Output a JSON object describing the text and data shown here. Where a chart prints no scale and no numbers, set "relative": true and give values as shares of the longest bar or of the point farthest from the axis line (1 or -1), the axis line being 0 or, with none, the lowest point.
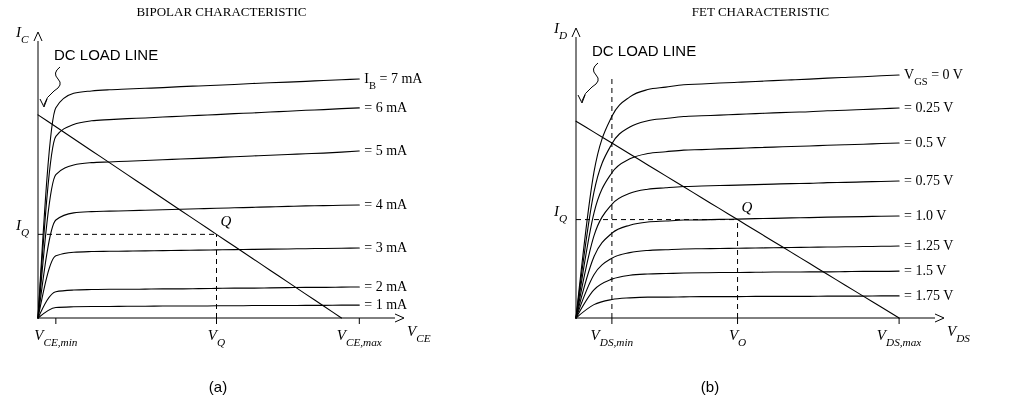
{
  "chart_data": [
    {
      "type": "line",
      "title": "BIPOLAR CHARACTERISTIC",
      "xlabel": "V$_{CE}$",
      "ylabel": "I$_{C}$",
      "relative": true,
      "categories": [
        null,
        "V$_{CE,min}$",
        null,
        null,
        null,
        null,
        null,
        null,
        null,
        null,
        "V$_{Q}$",
        null,
        null,
        null,
        null,
        null,
        null,
        null,
        "V$_{CE,max}$",
        null,
        null
      ],
      "series": [
        {
          "name": "I$_{B}$ = 7 mA",
          "color": "#000000",
          "values": [
            0,
            0.88,
            0.94,
            0.95,
            0.955,
            0.958,
            0.961,
            0.964,
            0.968,
            0.971,
            0.974,
            0.977,
            0.981,
            0.984,
            0.987,
            0.99,
            0.994,
            0.997,
            1.0,
            null,
            null
          ]
        },
        {
          "name": "= 6 mA",
          "color": "#000000",
          "values": [
            0,
            0.76,
            0.81,
            0.825,
            0.83,
            0.834,
            0.837,
            0.841,
            0.844,
            0.848,
            0.851,
            0.855,
            0.858,
            0.862,
            0.865,
            0.869,
            0.872,
            0.876,
            0.879,
            null,
            null
          ]
        },
        {
          "name": "= 5 mA",
          "color": "#000000",
          "values": [
            0,
            0.6,
            0.64,
            0.65,
            0.653,
            0.656,
            0.659,
            0.662,
            0.665,
            0.668,
            0.671,
            0.675,
            0.678,
            0.681,
            0.684,
            0.687,
            0.69,
            0.694,
            0.699,
            null,
            null
          ]
        },
        {
          "name": "= 4 mA",
          "color": "#000000",
          "values": [
            0,
            0.41,
            0.44,
            0.445,
            0.447,
            0.449,
            0.451,
            0.453,
            0.455,
            0.457,
            0.459,
            0.461,
            0.463,
            0.465,
            0.467,
            0.469,
            0.47,
            0.472,
            0.473,
            null,
            null
          ]
        },
        {
          "name": "= 3 mA",
          "color": "#000000",
          "values": [
            0,
            0.26,
            0.275,
            0.278,
            0.279,
            0.28,
            0.281,
            0.282,
            0.283,
            0.284,
            0.285,
            0.286,
            0.287,
            0.288,
            0.289,
            0.29,
            0.291,
            0.292,
            0.293,
            null,
            null
          ]
        },
        {
          "name": "= 2 mA",
          "color": "#000000",
          "values": [
            0,
            0.11,
            0.117,
            0.119,
            0.12,
            0.12,
            0.121,
            0.122,
            0.122,
            0.123,
            0.124,
            0.125,
            0.125,
            0.126,
            0.127,
            0.128,
            0.128,
            0.129,
            0.13,
            null,
            null
          ]
        },
        {
          "name": "= 1 mA",
          "color": "#000000",
          "values": [
            0,
            0.044,
            0.047,
            0.048,
            0.048,
            0.049,
            0.049,
            0.05,
            0.05,
            0.05,
            0.051,
            0.051,
            0.052,
            0.052,
            0.052,
            0.053,
            0.053,
            0.054,
            0.054,
            null,
            null
          ]
        },
        {
          "color": "#000000",
          "values": [
            0.85,
            0.8,
            0.75,
            0.7,
            0.65,
            0.6,
            0.55,
            0.5,
            0.45,
            0.4,
            0.35,
            0.3,
            0.25,
            0.2,
            0.15,
            0.1,
            0.05,
            0,
            null,
            null,
            null
          ]
        }
      ],
      "ref_lines": [
        {
          "axis": "y",
          "value": 0.35,
          "label": "I$_{Q}$",
          "line_style": "dashed"
        },
        {
          "axis": "x",
          "value": "V$_{Q}$",
          "line_style": "dashed"
        }
      ],
      "annotations": [
        "DC LOAD LINE",
        {
          "text": "Q",
          "x": "V$_{Q}$",
          "y": 0.35
        },
        "(a)"
      ]
    },
    {
      "type": "line",
      "title": "FET CHARACTERISTIC",
      "xlabel": "V$_{DS}$",
      "ylabel": "I$_{D}$",
      "relative": true,
      "categories": [
        null,
        null,
        "V$_{DS,min}$",
        null,
        null,
        null,
        null,
        null,
        null,
        "V$_{O}$",
        null,
        null,
        null,
        null,
        null,
        null,
        null,
        null,
        "V$_{DS,max}$",
        null,
        null
      ],
      "series": [
        {
          "name": "V$_{GS}$ = 0 V",
          "color": "#000000",
          "values": [
            0,
            0.6,
            0.83,
            0.91,
            0.94,
            0.95,
            0.96,
            0.963,
            0.967,
            0.97,
            0.973,
            0.977,
            0.98,
            0.983,
            0.987,
            0.99,
            0.993,
            0.997,
            1.0,
            null,
            null
          ]
        },
        {
          "name": "= 0.25 V",
          "color": "#000000",
          "values": [
            0,
            0.518,
            0.717,
            0.786,
            0.812,
            0.821,
            0.829,
            0.832,
            0.835,
            0.838,
            0.841,
            0.844,
            0.847,
            0.849,
            0.853,
            0.855,
            0.858,
            0.861,
            0.864,
            null,
            null
          ]
        },
        {
          "name": "= 0.5 V",
          "color": "#000000",
          "values": [
            0,
            0.432,
            0.598,
            0.655,
            0.677,
            0.684,
            0.691,
            0.693,
            0.696,
            0.698,
            0.701,
            0.703,
            0.706,
            0.708,
            0.711,
            0.713,
            0.715,
            0.718,
            0.72,
            null,
            null
          ]
        },
        {
          "name": "= 0.75 V",
          "color": "#000000",
          "values": [
            0,
            0.338,
            0.468,
            0.513,
            0.53,
            0.536,
            0.541,
            0.543,
            0.545,
            0.547,
            0.549,
            0.551,
            0.553,
            0.554,
            0.557,
            0.558,
            0.56,
            0.562,
            0.564,
            null,
            null
          ]
        },
        {
          "name": "= 1.0 V",
          "color": "#000000",
          "values": [
            0,
            0.252,
            0.349,
            0.382,
            0.395,
            0.399,
            0.403,
            0.404,
            0.406,
            0.407,
            0.409,
            0.41,
            0.412,
            0.413,
            0.415,
            0.416,
            0.417,
            0.419,
            0.42,
            null,
            null
          ]
        },
        {
          "name": "= 1.25 V",
          "color": "#000000",
          "values": [
            0,
            0.178,
            0.246,
            0.269,
            0.278,
            0.281,
            0.284,
            0.285,
            0.286,
            0.287,
            0.288,
            0.289,
            0.29,
            0.291,
            0.292,
            0.293,
            0.294,
            0.295,
            0.296,
            null,
            null
          ]
        },
        {
          "name": "= 1.5 V",
          "color": "#000000",
          "values": [
            0,
            0.116,
            0.16,
            0.176,
            0.181,
            0.183,
            0.185,
            0.186,
            0.187,
            0.187,
            0.188,
            0.189,
            0.189,
            0.19,
            0.19,
            0.191,
            0.192,
            0.192,
            0.193,
            null,
            null
          ]
        },
        {
          "name": "= 1.75 V",
          "color": "#000000",
          "values": [
            0,
            0.055,
            0.076,
            0.083,
            0.086,
            0.086,
            0.087,
            0.088,
            0.088,
            0.088,
            0.089,
            0.089,
            0.089,
            0.089,
            0.09,
            0.09,
            0.09,
            0.091,
            0.091,
            null,
            null
          ]
        },
        {
          "color": "#000000",
          "values": [
            0.81,
            0.765,
            0.72,
            0.675,
            0.63,
            0.585,
            0.54,
            0.495,
            0.45,
            0.405,
            0.36,
            0.315,
            0.27,
            0.225,
            0.18,
            0.135,
            0.09,
            0.045,
            0,
            null,
            null
          ]
        }
      ],
      "ref_lines": [
        {
          "axis": "y",
          "value": 0.405,
          "label": "I$_{Q}$",
          "line_style": "dashed"
        },
        {
          "axis": "x",
          "value": "V$_{DS,min}$",
          "line_style": "dashed"
        },
        {
          "axis": "x",
          "value": "V$_{O}$",
          "line_style": "dashed"
        }
      ],
      "annotations": [
        "DC LOAD LINE",
        {
          "text": "Q",
          "x": "V$_{O}$",
          "y": 0.405
        },
        "(b)"
      ]
    }
  ]
}
